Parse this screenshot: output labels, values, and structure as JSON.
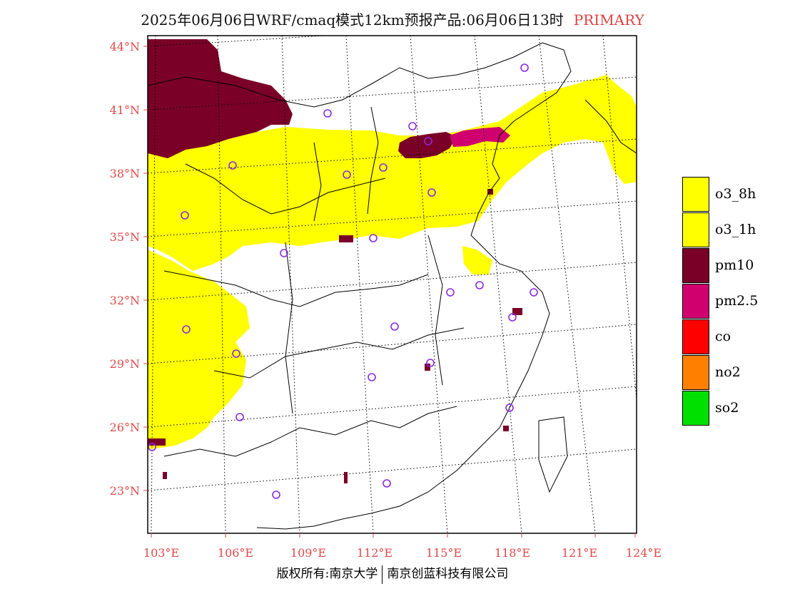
{
  "title": {
    "main": "2025年06月06日WRF/cmaq模式12km预报产品:06月06日13时",
    "tag": "PRIMARY",
    "tag_color": "#e04040"
  },
  "map": {
    "lat_labels": [
      "44°N",
      "41°N",
      "38°N",
      "35°N",
      "32°N",
      "29°N",
      "26°N",
      "23°N"
    ],
    "lon_labels": [
      "103°E",
      "106°E",
      "109°E",
      "112°E",
      "115°E",
      "118°E",
      "121°E",
      "124°E"
    ],
    "label_color": "#e04848",
    "dominant_pollutant_regions": [
      "o3_8h",
      "o3_1h",
      "pm10",
      "pm2.5"
    ]
  },
  "legend": [
    {
      "label": "o3_8h",
      "color": "#ffff00"
    },
    {
      "label": "o3_1h",
      "color": "#ffff00"
    },
    {
      "label": "pm10",
      "color": "#7a0028"
    },
    {
      "label": "pm2.5",
      "color": "#d0006f"
    },
    {
      "label": "co",
      "color": "#ff0000"
    },
    {
      "label": "no2",
      "color": "#ff7f00"
    },
    {
      "label": "so2",
      "color": "#00e000"
    }
  ],
  "footer": {
    "left": "版权所有:南京大学",
    "right": "南京创蓝科技有限公司"
  }
}
